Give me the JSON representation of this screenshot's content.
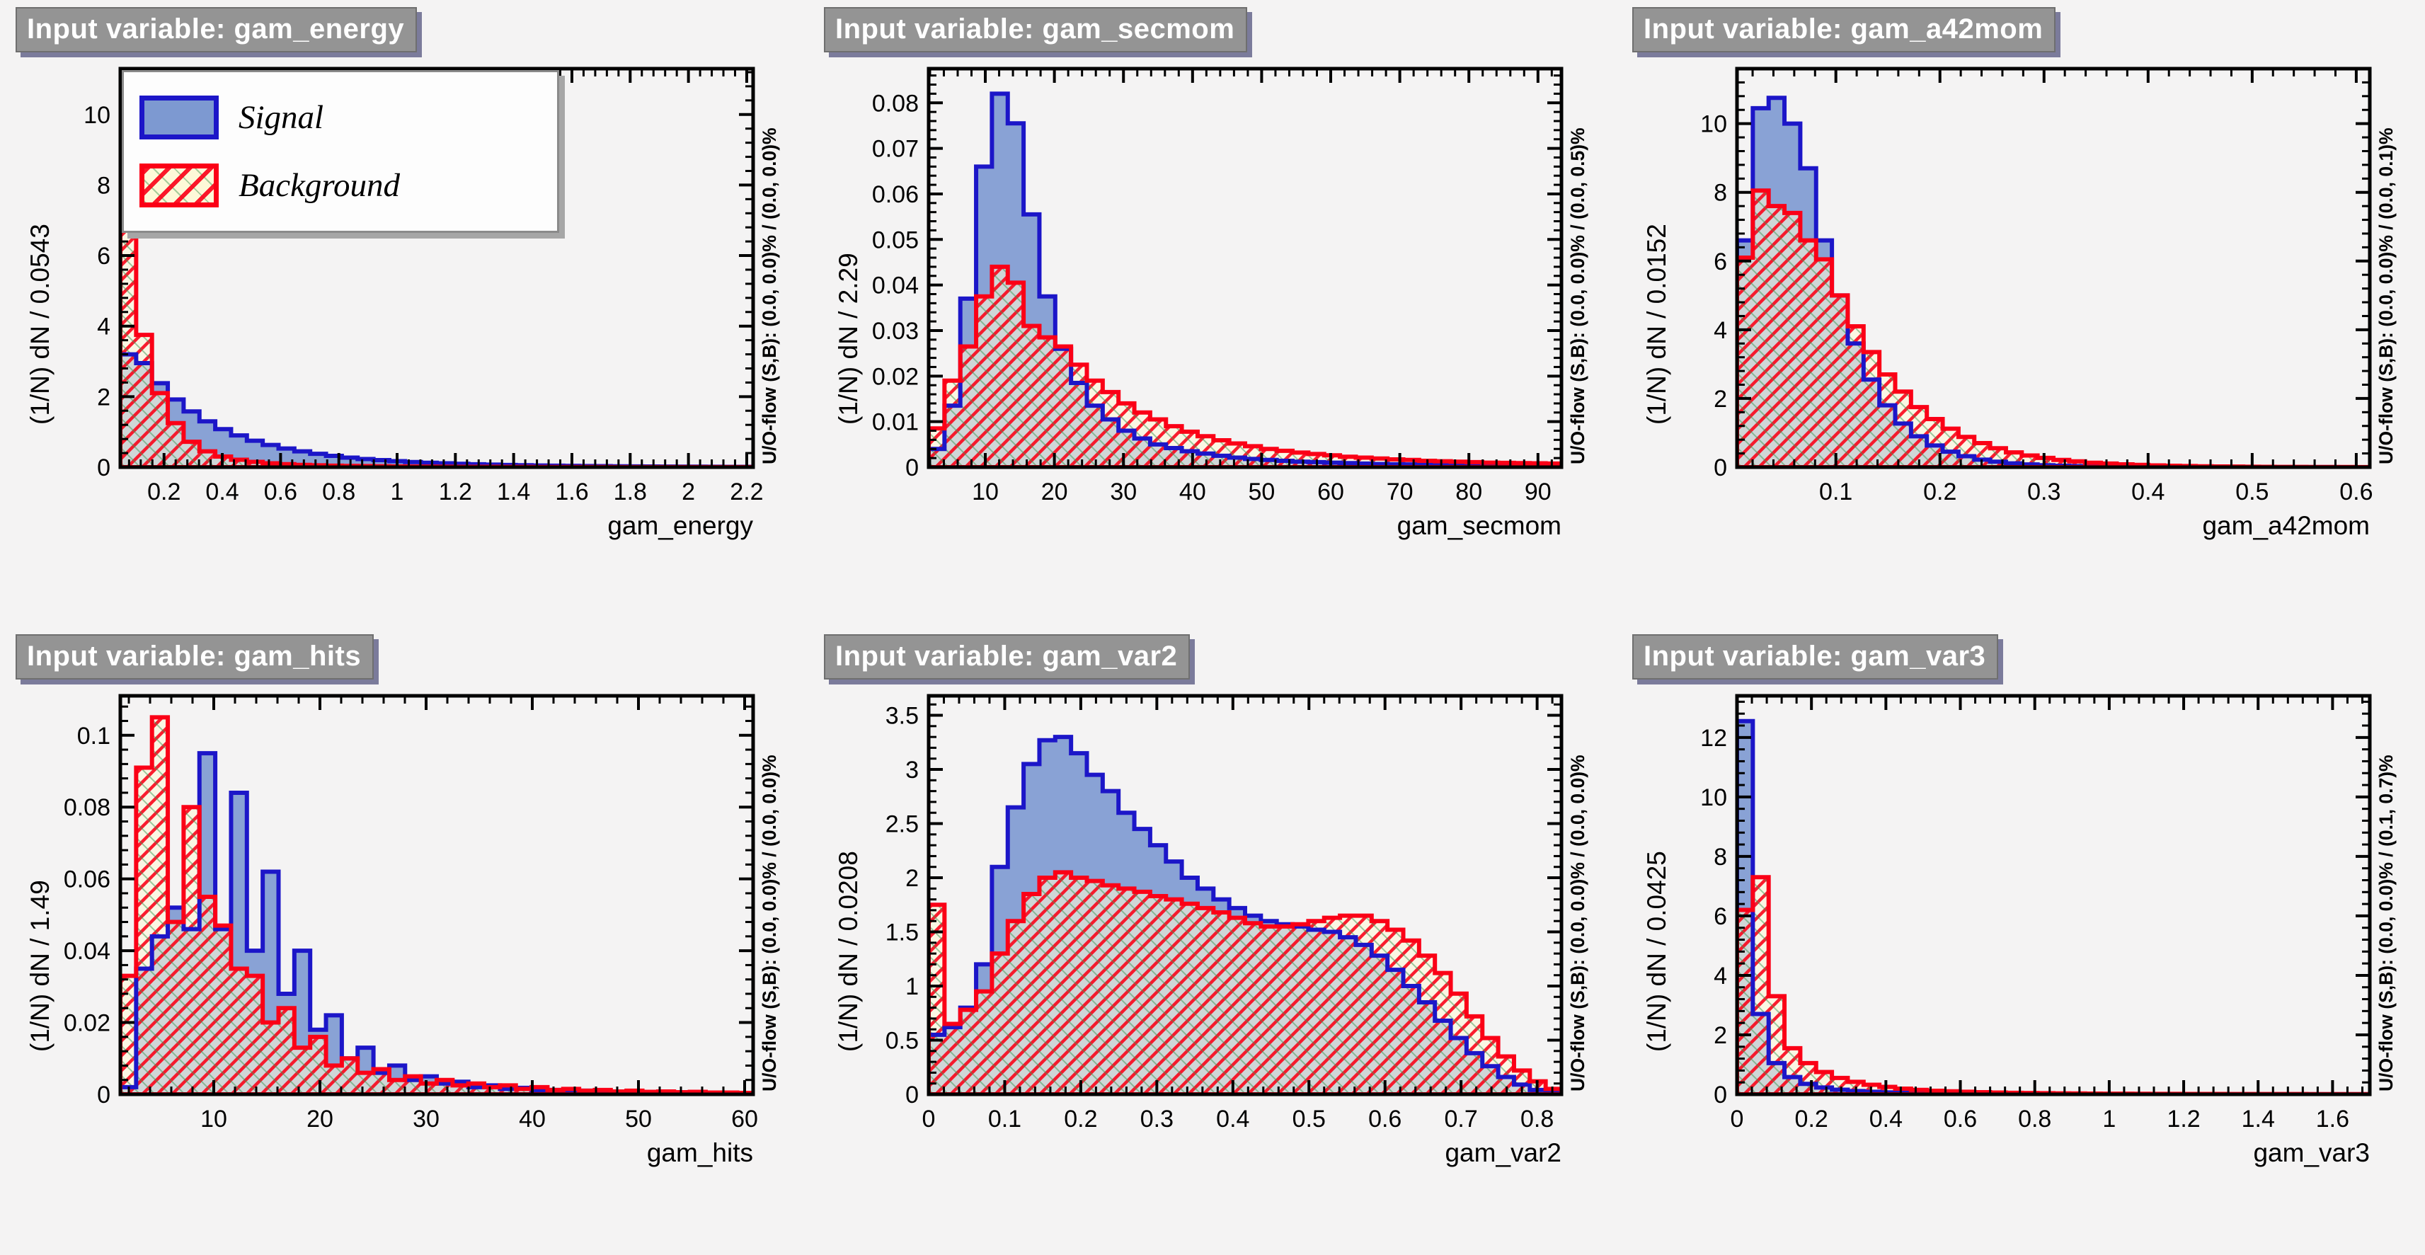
{
  "page": {
    "background": "#f4f3f3"
  },
  "legend": {
    "signal": "Signal",
    "background": "Background"
  },
  "colors": {
    "signal_line": "#1c16c8",
    "signal_fill": "#7d99d1",
    "background_line": "#fb0016",
    "background_fill": "#fdf9d8",
    "hatch_green": "#3c9650",
    "frame": "#000000",
    "title_bg": "#949494",
    "title_text": "#ffffff"
  },
  "panels": [
    {
      "title": "Input variable: gam_energy",
      "x_title": "gam_energy",
      "y_title": "(1/N) dN / 0.0543",
      "uoflow": "U/O-flow (S,B): (0.0, 0.0)% / (0.0, 0.0)%"
    },
    {
      "title": "Input variable: gam_secmom",
      "x_title": "gam_secmom",
      "y_title": "(1/N) dN / 2.29",
      "uoflow": "U/O-flow (S,B): (0.0, 0.0)% / (0.0, 0.5)%"
    },
    {
      "title": "Input variable: gam_a42mom",
      "x_title": "gam_a42mom",
      "y_title": "(1/N) dN / 0.0152",
      "uoflow": "U/O-flow (S,B): (0.0, 0.0)% / (0.0, 0.1)%"
    },
    {
      "title": "Input variable: gam_hits",
      "x_title": "gam_hits",
      "y_title": "(1/N) dN / 1.49",
      "uoflow": "U/O-flow (S,B): (0.0, 0.0)% / (0.0, 0.0)%"
    },
    {
      "title": "Input variable: gam_var2",
      "x_title": "gam_var2",
      "y_title": "(1/N) dN / 0.0208",
      "uoflow": "U/O-flow (S,B): (0.0, 0.0)% / (0.0, 0.0)%"
    },
    {
      "title": "Input variable: gam_var3",
      "x_title": "gam_var3",
      "y_title": "(1/N) dN / 0.0425",
      "uoflow": "U/O-flow (S,B): (0.0, 0.0)% / (0.1, 0.7)%"
    }
  ],
  "chart_data": [
    {
      "type": "histogram",
      "title": "Input variable: gam_energy",
      "xlabel": "gam_energy",
      "ylabel": "(1/N) dN / 0.0543",
      "x_range": [
        0.05,
        2.222
      ],
      "y_range": [
        0,
        11.3
      ],
      "bins": 40,
      "grid": false,
      "legend_position": "top-left",
      "x_ticks": {
        "values": [
          0.2,
          0.4,
          0.6,
          0.8,
          1.0,
          1.2,
          1.4,
          1.6,
          1.8,
          2.0,
          2.2
        ],
        "labels": [
          "0.2",
          "0.4",
          "0.6",
          "0.8",
          "1",
          "1.2",
          "1.4",
          "1.6",
          "1.8",
          "2",
          "2.2"
        ],
        "minor_step": 0.04
      },
      "y_ticks": {
        "values": [
          0,
          2,
          4,
          6,
          8,
          10
        ],
        "labels": [
          "0",
          "2",
          "4",
          "6",
          "8",
          "10"
        ],
        "minor_step": 0.4
      },
      "series": [
        {
          "name": "Signal",
          "values": [
            3.2,
            2.95,
            2.38,
            1.92,
            1.58,
            1.3,
            1.08,
            0.9,
            0.75,
            0.63,
            0.53,
            0.45,
            0.38,
            0.32,
            0.27,
            0.23,
            0.2,
            0.17,
            0.145,
            0.125,
            0.11,
            0.095,
            0.082,
            0.072,
            0.063,
            0.055,
            0.048,
            0.042,
            0.037,
            0.033,
            0.029,
            0.026,
            0.023,
            0.02,
            0.018,
            0.016,
            0.014,
            0.013,
            0.011,
            0.01
          ]
        },
        {
          "name": "Background",
          "values": [
            8.6,
            3.75,
            2.1,
            1.25,
            0.72,
            0.45,
            0.3,
            0.21,
            0.15,
            0.11,
            0.085,
            0.065,
            0.052,
            0.042,
            0.035,
            0.029,
            0.024,
            0.02,
            0.017,
            0.015,
            0.013,
            0.011,
            0.01,
            0.009,
            0.008,
            0.007,
            0.006,
            0.0055,
            0.005,
            0.0045,
            0.004,
            0.0037,
            0.0034,
            0.0031,
            0.0028,
            0.0026,
            0.0024,
            0.0022,
            0.002,
            0.0019
          ]
        }
      ]
    },
    {
      "type": "histogram",
      "title": "Input variable: gam_secmom",
      "xlabel": "gam_secmom",
      "ylabel": "(1/N) dN / 2.29",
      "x_range": [
        1.8,
        93.4
      ],
      "y_range": [
        0,
        0.0875
      ],
      "bins": 40,
      "grid": false,
      "legend_position": "none",
      "x_ticks": {
        "values": [
          10,
          20,
          30,
          40,
          50,
          60,
          70,
          80,
          90
        ],
        "labels": [
          "10",
          "20",
          "30",
          "40",
          "50",
          "60",
          "70",
          "80",
          "90"
        ],
        "minor_step": 2
      },
      "y_ticks": {
        "values": [
          0,
          0.01,
          0.02,
          0.03,
          0.04,
          0.05,
          0.06,
          0.07,
          0.08
        ],
        "labels": [
          "0",
          "0.01",
          "0.02",
          "0.03",
          "0.04",
          "0.05",
          "0.06",
          "0.07",
          "0.08"
        ],
        "minor_step": 0.002
      },
      "series": [
        {
          "name": "Signal",
          "values": [
            0.004,
            0.0135,
            0.037,
            0.066,
            0.082,
            0.0755,
            0.0555,
            0.0375,
            0.026,
            0.0185,
            0.0135,
            0.0105,
            0.008,
            0.0063,
            0.005,
            0.0042,
            0.0035,
            0.003,
            0.0025,
            0.0021,
            0.0018,
            0.0016,
            0.0014,
            0.0012,
            0.0011,
            0.001,
            0.0009,
            0.0008,
            0.0007,
            0.00065,
            0.0006,
            0.00055,
            0.0005,
            0.00048,
            0.00045,
            0.0004,
            0.00038,
            0.00035,
            0.0003,
            0.0003
          ]
        },
        {
          "name": "Background",
          "values": [
            0.0085,
            0.019,
            0.0265,
            0.0375,
            0.044,
            0.0405,
            0.031,
            0.0285,
            0.0265,
            0.0225,
            0.019,
            0.0165,
            0.014,
            0.012,
            0.0105,
            0.009,
            0.0078,
            0.0068,
            0.0059,
            0.0052,
            0.0046,
            0.004,
            0.0036,
            0.0032,
            0.0029,
            0.0026,
            0.0023,
            0.0021,
            0.0019,
            0.0017,
            0.0016,
            0.0014,
            0.0013,
            0.0012,
            0.0011,
            0.001,
            0.00095,
            0.0009,
            0.00085,
            0.0008
          ]
        }
      ]
    },
    {
      "type": "histogram",
      "title": "Input variable: gam_a42mom",
      "xlabel": "gam_a42mom",
      "ylabel": "(1/N) dN / 0.0152",
      "x_range": [
        0.005,
        0.613
      ],
      "y_range": [
        0,
        11.6
      ],
      "bins": 40,
      "grid": false,
      "legend_position": "none",
      "x_ticks": {
        "values": [
          0.1,
          0.2,
          0.3,
          0.4,
          0.5,
          0.6
        ],
        "labels": [
          "0.1",
          "0.2",
          "0.3",
          "0.4",
          "0.5",
          "0.6"
        ],
        "minor_step": 0.02
      },
      "y_ticks": {
        "values": [
          0,
          2,
          4,
          6,
          8,
          10
        ],
        "labels": [
          "0",
          "2",
          "4",
          "6",
          "8",
          "10"
        ],
        "minor_step": 0.4
      },
      "series": [
        {
          "name": "Signal",
          "values": [
            6.6,
            10.45,
            10.75,
            10.0,
            8.7,
            6.6,
            5.0,
            3.6,
            2.55,
            1.8,
            1.27,
            0.9,
            0.63,
            0.45,
            0.32,
            0.22,
            0.16,
            0.11,
            0.08,
            0.057,
            0.04,
            0.03,
            0.022,
            0.017,
            0.013,
            0.01,
            0.008,
            0.006,
            0.005,
            0.004,
            0.0035,
            0.003,
            0.0025,
            0.002,
            0.002,
            0.0018,
            0.0015,
            0.0013,
            0.0012,
            0.001
          ]
        },
        {
          "name": "Background",
          "values": [
            6.1,
            8.05,
            7.6,
            7.4,
            6.6,
            6.05,
            5.0,
            4.1,
            3.35,
            2.7,
            2.2,
            1.75,
            1.4,
            1.12,
            0.88,
            0.7,
            0.55,
            0.43,
            0.34,
            0.27,
            0.21,
            0.17,
            0.13,
            0.105,
            0.083,
            0.066,
            0.052,
            0.042,
            0.033,
            0.027,
            0.021,
            0.017,
            0.014,
            0.011,
            0.009,
            0.0075,
            0.006,
            0.005,
            0.004,
            0.0035
          ]
        }
      ]
    },
    {
      "type": "histogram",
      "title": "Input variable: gam_hits",
      "xlabel": "gam_hits",
      "ylabel": "(1/N) dN / 1.49",
      "x_range": [
        1.2,
        60.8
      ],
      "y_range": [
        0,
        0.111
      ],
      "bins": 40,
      "grid": false,
      "legend_position": "none",
      "x_ticks": {
        "values": [
          10,
          20,
          30,
          40,
          50,
          60
        ],
        "labels": [
          "10",
          "20",
          "30",
          "40",
          "50",
          "60"
        ],
        "minor_step": 2
      },
      "y_ticks": {
        "values": [
          0,
          0.02,
          0.04,
          0.06,
          0.08,
          0.1
        ],
        "labels": [
          "0",
          "0.02",
          "0.04",
          "0.06",
          "0.08",
          "0.1"
        ],
        "minor_step": 0.004
      },
      "series": [
        {
          "name": "Signal",
          "values": [
            0.002,
            0.035,
            0.044,
            0.052,
            0.046,
            0.095,
            0.046,
            0.084,
            0.04,
            0.062,
            0.028,
            0.04,
            0.018,
            0.022,
            0.01,
            0.013,
            0.006,
            0.008,
            0.004,
            0.005,
            0.003,
            0.0035,
            0.002,
            0.0025,
            0.0015,
            0.0018,
            0.001,
            0.0012,
            0.0008,
            0.001,
            0.0006,
            0.0008,
            0.0005,
            0.0006,
            0.0004,
            0.0005,
            0.0003,
            0.0004,
            0.0003,
            0.0003
          ]
        },
        {
          "name": "Background",
          "values": [
            0.033,
            0.091,
            0.105,
            0.048,
            0.08,
            0.055,
            0.047,
            0.035,
            0.033,
            0.02,
            0.024,
            0.013,
            0.016,
            0.008,
            0.01,
            0.006,
            0.007,
            0.004,
            0.005,
            0.003,
            0.004,
            0.0025,
            0.003,
            0.002,
            0.0025,
            0.0015,
            0.002,
            0.0012,
            0.0015,
            0.001,
            0.0012,
            0.0008,
            0.001,
            0.0007,
            0.0008,
            0.0006,
            0.0007,
            0.0005,
            0.0005,
            0.0004
          ]
        }
      ]
    },
    {
      "type": "histogram",
      "title": "Input variable: gam_var2",
      "xlabel": "gam_var2",
      "ylabel": "(1/N) dN / 0.0208",
      "x_range": [
        0,
        0.832
      ],
      "y_range": [
        0,
        3.68
      ],
      "bins": 40,
      "grid": false,
      "legend_position": "none",
      "x_ticks": {
        "values": [
          0,
          0.1,
          0.2,
          0.3,
          0.4,
          0.5,
          0.6,
          0.7,
          0.8
        ],
        "labels": [
          "0",
          "0.1",
          "0.2",
          "0.3",
          "0.4",
          "0.5",
          "0.6",
          "0.7",
          "0.8"
        ],
        "minor_step": 0.02
      },
      "y_ticks": {
        "values": [
          0,
          0.5,
          1,
          1.5,
          2,
          2.5,
          3,
          3.5
        ],
        "labels": [
          "0",
          "0.5",
          "1",
          "1.5",
          "2",
          "2.5",
          "3",
          "3.5"
        ],
        "minor_step": 0.1
      },
      "series": [
        {
          "name": "Signal",
          "values": [
            0.55,
            0.62,
            0.8,
            1.2,
            2.1,
            2.65,
            3.05,
            3.27,
            3.3,
            3.15,
            2.95,
            2.8,
            2.6,
            2.45,
            2.3,
            2.15,
            2.0,
            1.9,
            1.8,
            1.72,
            1.65,
            1.6,
            1.57,
            1.55,
            1.52,
            1.5,
            1.45,
            1.38,
            1.28,
            1.15,
            1.0,
            0.85,
            0.68,
            0.52,
            0.38,
            0.26,
            0.16,
            0.09,
            0.04,
            0.015
          ]
        },
        {
          "name": "Background",
          "values": [
            1.75,
            0.65,
            0.78,
            0.95,
            1.3,
            1.6,
            1.85,
            2.0,
            2.05,
            2.0,
            1.97,
            1.93,
            1.9,
            1.87,
            1.83,
            1.8,
            1.76,
            1.72,
            1.68,
            1.63,
            1.58,
            1.55,
            1.55,
            1.57,
            1.6,
            1.63,
            1.65,
            1.65,
            1.6,
            1.52,
            1.42,
            1.28,
            1.12,
            0.93,
            0.72,
            0.52,
            0.35,
            0.22,
            0.12,
            0.05
          ]
        }
      ]
    },
    {
      "type": "histogram",
      "title": "Input variable: gam_var3",
      "xlabel": "gam_var3",
      "ylabel": "(1/N) dN / 0.0425",
      "x_range": [
        0,
        1.7
      ],
      "y_range": [
        0,
        13.4
      ],
      "bins": 40,
      "grid": false,
      "legend_position": "none",
      "x_ticks": {
        "values": [
          0,
          0.2,
          0.4,
          0.6,
          0.8,
          1.0,
          1.2,
          1.4,
          1.6
        ],
        "labels": [
          "0",
          "0.2",
          "0.4",
          "0.6",
          "0.8",
          "1",
          "1.2",
          "1.4",
          "1.6"
        ],
        "minor_step": 0.04
      },
      "y_ticks": {
        "values": [
          0,
          2,
          4,
          6,
          8,
          10,
          12
        ],
        "labels": [
          "0",
          "2",
          "4",
          "6",
          "8",
          "10",
          "12"
        ],
        "minor_step": 0.4
      },
      "series": [
        {
          "name": "Signal",
          "values": [
            12.55,
            2.7,
            1.05,
            0.58,
            0.35,
            0.23,
            0.155,
            0.11,
            0.085,
            0.065,
            0.05,
            0.04,
            0.033,
            0.027,
            0.022,
            0.018,
            0.015,
            0.013,
            0.011,
            0.01,
            0.009,
            0.008,
            0.007,
            0.006,
            0.0055,
            0.005,
            0.0045,
            0.004,
            0.0038,
            0.0035,
            0.0032,
            0.003,
            0.0028,
            0.0026,
            0.0024,
            0.0022,
            0.002,
            0.002,
            0.0018,
            0.0017
          ]
        },
        {
          "name": "Background",
          "values": [
            6.2,
            7.3,
            3.3,
            1.55,
            1.05,
            0.75,
            0.55,
            0.42,
            0.32,
            0.25,
            0.19,
            0.15,
            0.12,
            0.1,
            0.085,
            0.07,
            0.06,
            0.05,
            0.044,
            0.038,
            0.033,
            0.029,
            0.025,
            0.022,
            0.02,
            0.018,
            0.016,
            0.014,
            0.013,
            0.012,
            0.011,
            0.01,
            0.009,
            0.0085,
            0.008,
            0.0075,
            0.007,
            0.0065,
            0.006,
            0.0055
          ]
        }
      ]
    }
  ]
}
